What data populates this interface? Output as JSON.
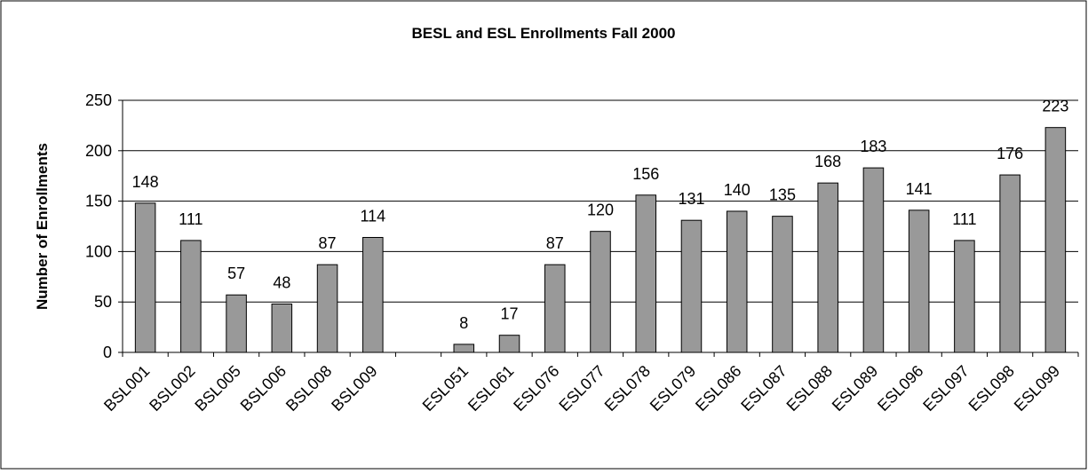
{
  "chart_data": {
    "type": "bar",
    "title": "BESL and ESL Enrollments Fall 2000",
    "y_label": "Number of Enrollments",
    "categories": [
      "BSL001",
      "BSL002",
      "BSL005",
      "BSL006",
      "BSL008",
      "BSL009",
      null,
      "ESL051",
      "ESL061",
      "ESL076",
      "ESL077",
      "ESL078",
      "ESL079",
      "ESL086",
      "ESL087",
      "ESL088",
      "ESL089",
      "ESL096",
      "ESL097",
      "ESL098",
      "ESL099"
    ],
    "values": [
      148,
      111,
      57,
      48,
      87,
      114,
      null,
      8,
      17,
      87,
      120,
      156,
      131,
      140,
      135,
      168,
      183,
      141,
      111,
      176,
      223
    ],
    "color": "#999999",
    "ylim": [
      0,
      250
    ],
    "yticks": [
      0,
      50,
      100,
      150,
      200,
      250
    ],
    "grid": true
  }
}
